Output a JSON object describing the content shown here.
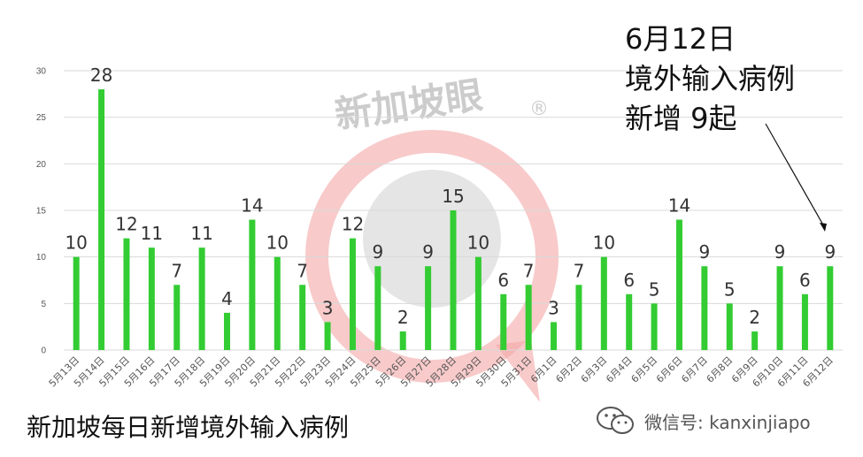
{
  "annotation": {
    "line1": "6月12日",
    "line2": "境外输入病例",
    "line3": "新增 9起"
  },
  "footer": {
    "title": "新加坡每日新增境外输入病例",
    "wechat_label": "微信号: kanxinjiapo"
  },
  "watermark": {
    "text": "新加坡眼",
    "registered": "®"
  },
  "colors": {
    "bar": "#33cc33",
    "watermark_ring": "#f4a6a6",
    "watermark_disc": "#d0d0d0"
  },
  "chart_data": {
    "type": "bar",
    "title": "",
    "xlabel": "",
    "ylabel": "",
    "ylim": [
      0,
      30
    ],
    "yticks": [
      0,
      5,
      10,
      15,
      20,
      25,
      30
    ],
    "grid": true,
    "categories": [
      "5月13日",
      "5月14日",
      "5月15日",
      "5月16日",
      "5月17日",
      "5月18日",
      "5月19日",
      "5月20日",
      "5月21日",
      "5月22日",
      "5月23日",
      "5月24日",
      "5月25日",
      "5月26日",
      "5月27日",
      "5月28日",
      "5月29日",
      "5月30日",
      "5月31日",
      "6月1日",
      "6月2日",
      "6月3日",
      "6月4日",
      "6月5日",
      "6月6日",
      "6月7日",
      "6月8日",
      "6月9日",
      "6月10日",
      "6月11日",
      "6月12日"
    ],
    "values": [
      10,
      28,
      12,
      11,
      7,
      11,
      4,
      14,
      10,
      7,
      3,
      12,
      9,
      2,
      9,
      15,
      10,
      6,
      7,
      3,
      7,
      10,
      6,
      5,
      14,
      9,
      5,
      2,
      9,
      6,
      9
    ]
  }
}
